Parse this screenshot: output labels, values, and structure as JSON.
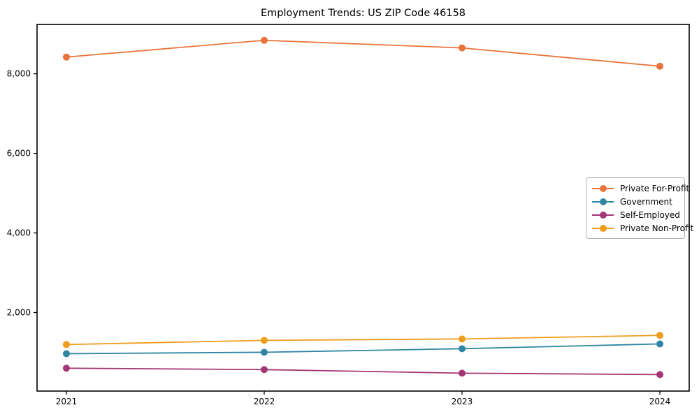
{
  "chart_data": {
    "type": "line",
    "title": "Employment Trends: US ZIP Code 46158",
    "categories": [
      "2021",
      "2022",
      "2023",
      "2024"
    ],
    "series": [
      {
        "name": "Private For-Profit",
        "color": "#e8743c",
        "values": [
          8420,
          8840,
          8650,
          8190
        ]
      },
      {
        "name": "Government",
        "color": "#2f86a2",
        "values": [
          965,
          1000,
          1090,
          1210
        ]
      },
      {
        "name": "Self-Employed",
        "color": "#a33674",
        "values": [
          600,
          565,
          475,
          440
        ]
      },
      {
        "name": "Private Non-Profit",
        "color": "#f09d1e",
        "values": [
          1195,
          1300,
          1335,
          1425
        ]
      }
    ],
    "xlabel": "",
    "ylabel": "",
    "yticks": [
      2000,
      4000,
      6000,
      8000
    ],
    "ytick_labels": [
      "2,000",
      "4,000",
      "6,000",
      "8,000"
    ],
    "ylim": [
      25,
      9240
    ],
    "grid": false,
    "legend_position": "center-right",
    "marker": "circle",
    "frame_color": "#000000",
    "background_color": "#ffffff"
  }
}
